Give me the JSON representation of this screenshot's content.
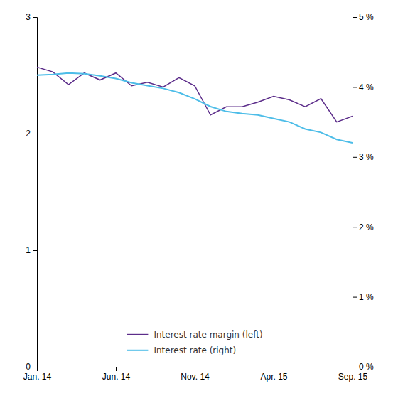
{
  "chart_data": {
    "type": "line",
    "categories": [
      "Jan. 14",
      null,
      null,
      null,
      null,
      "Jun. 14",
      null,
      null,
      null,
      null,
      "Nov. 14",
      null,
      null,
      null,
      null,
      "Apr. 15",
      null,
      null,
      null,
      null,
      "Sep. 15"
    ],
    "series": [
      {
        "name": "Interest rate margin (left)",
        "color": "#5c2d8a",
        "axis": "y",
        "values": [
          2.57,
          2.53,
          2.42,
          2.52,
          2.46,
          2.52,
          2.41,
          2.44,
          2.4,
          2.48,
          2.41,
          2.16,
          2.23,
          2.23,
          2.27,
          2.32,
          2.29,
          2.23,
          2.3,
          2.1,
          2.15
        ]
      },
      {
        "name": "Interest rate (right)",
        "color": "#4dbde8",
        "axis": "y2",
        "values": [
          4.17,
          4.18,
          4.2,
          4.19,
          4.16,
          4.12,
          4.06,
          4.02,
          3.98,
          3.92,
          3.83,
          3.72,
          3.65,
          3.62,
          3.6,
          3.55,
          3.5,
          3.4,
          3.35,
          3.25,
          3.2
        ]
      }
    ],
    "ylim": [
      0,
      3
    ],
    "yticks": [
      0,
      1,
      2,
      3
    ],
    "y2lim": [
      0,
      5
    ],
    "y2ticks": [
      {
        "value": 0,
        "label": "0 %"
      },
      {
        "value": 1,
        "label": "1 %"
      },
      {
        "value": 2,
        "label": "2 %"
      },
      {
        "value": 3,
        "label": "3 %"
      },
      {
        "value": 4,
        "label": "4 %"
      },
      {
        "value": 5,
        "label": "5 %"
      }
    ],
    "grid": false,
    "legend": "lower center"
  }
}
